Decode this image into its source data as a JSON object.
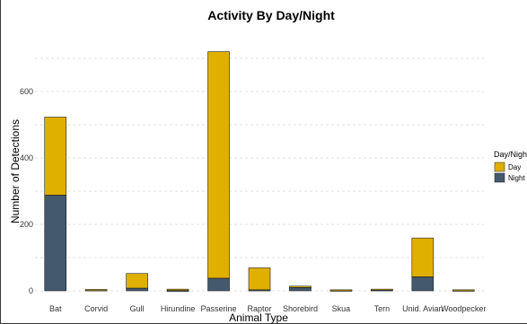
{
  "chart_data": {
    "type": "bar",
    "stacked": true,
    "title": "Activity By Day/Night",
    "xlabel": "Animal Type",
    "ylabel": "Number of Detections",
    "ylim": [
      0,
      750
    ],
    "yticks": [
      0,
      200,
      400,
      600
    ],
    "grid": true,
    "legend_position": "right",
    "legend_title": "Day/Night",
    "categories": [
      "Bat",
      "Corvid",
      "Gull",
      "Hirundine",
      "Passerine",
      "Raptor",
      "Shorebird",
      "Skua",
      "Tern",
      "Unid. Avian",
      "Woodpecker"
    ],
    "series": [
      {
        "name": "Night",
        "color": "#44596e",
        "values": [
          288,
          3,
          8,
          1,
          38,
          3,
          10,
          2,
          3,
          42,
          2
        ]
      },
      {
        "name": "Day",
        "color": "#e0b000",
        "values": [
          235,
          1,
          44,
          4,
          682,
          66,
          4,
          1,
          2,
          117,
          1
        ]
      }
    ],
    "legend_order": [
      "Day",
      "Night"
    ]
  }
}
